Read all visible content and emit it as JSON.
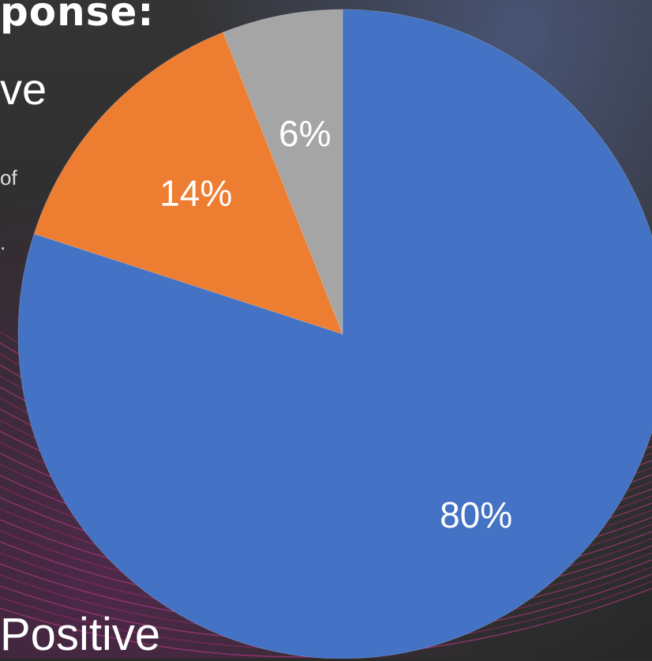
{
  "background_fragments": {
    "heading": "ponse:",
    "subheading": "ve",
    "body_line_1": "of",
    "body_line_2": ".",
    "footer": "Positive"
  },
  "chart_data": {
    "type": "pie",
    "start_angle_deg": 0,
    "direction": "clockwise",
    "slices": [
      {
        "value": 80,
        "label": "80%",
        "color": "#4472C4"
      },
      {
        "value": 14,
        "label": "14%",
        "color": "#ED7D31"
      },
      {
        "value": 6,
        "label": "6%",
        "color": "#A5A5A5"
      }
    ]
  }
}
